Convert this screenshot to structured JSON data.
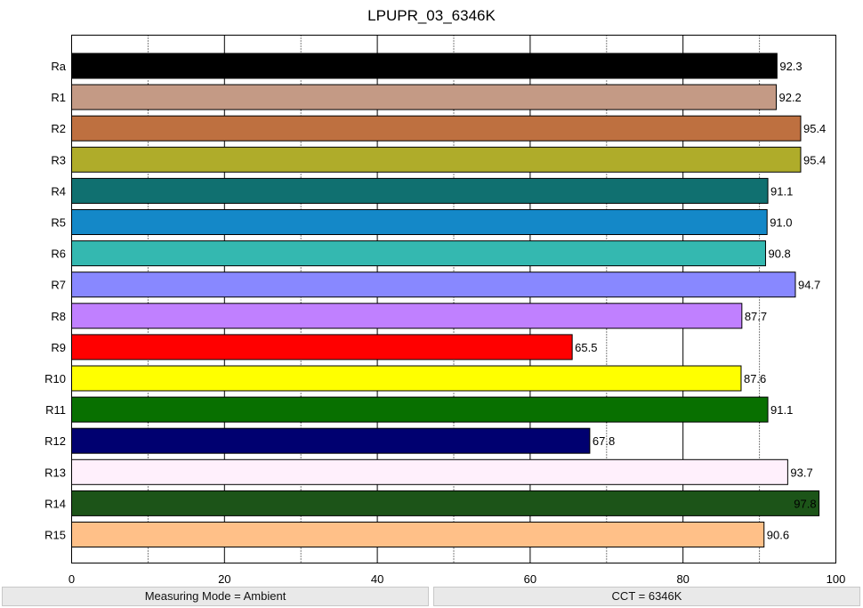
{
  "chart_data": {
    "type": "bar",
    "orientation": "horizontal",
    "title": "LPUPR_03_6346K",
    "xlabel": "",
    "ylabel": "",
    "xlim": [
      0,
      100
    ],
    "x_ticks": [
      "0",
      "20",
      "40",
      "60",
      "80",
      "100"
    ],
    "grid": "vertical, solid at labeled ticks, dotted between",
    "categories": [
      "Ra",
      "R1",
      "R2",
      "R3",
      "R4",
      "R5",
      "R6",
      "R7",
      "R8",
      "R9",
      "R10",
      "R11",
      "R12",
      "R13",
      "R14",
      "R15"
    ],
    "values": [
      92.3,
      92.2,
      95.4,
      95.4,
      91.1,
      91.0,
      90.8,
      94.7,
      87.7,
      65.5,
      87.6,
      91.1,
      67.8,
      93.7,
      97.8,
      90.6
    ],
    "value_labels": [
      "92.3",
      "92.2",
      "95.4",
      "95.4",
      "91.1",
      "91.0",
      "90.8",
      "94.7",
      "87.7",
      "65.5",
      "87.6",
      "91.1",
      "67.8",
      "93.7",
      "97.8",
      "90.6"
    ],
    "colors": [
      "#000000",
      "#c49a85",
      "#be7040",
      "#afac2a",
      "#107070",
      "#1488c8",
      "#34b8b0",
      "#8888ff",
      "#c080ff",
      "#ff0000",
      "#ffff00",
      "#087000",
      "#000070",
      "#fff0fc",
      "#1c5418",
      "#ffc088"
    ]
  },
  "status": {
    "left": "Measuring Mode = Ambient",
    "right": "CCT = 6346K"
  }
}
